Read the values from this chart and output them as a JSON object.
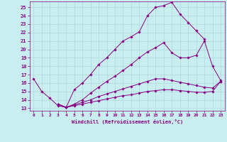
{
  "xlabel": "Windchill (Refroidissement éolien,°C)",
  "bg_color": "#c8eef0",
  "grid_color": "#b0d8da",
  "line_color": "#880088",
  "xlim": [
    -0.5,
    23.5
  ],
  "ylim": [
    12.7,
    25.7
  ],
  "xticks": [
    0,
    1,
    2,
    3,
    4,
    5,
    6,
    7,
    8,
    9,
    10,
    11,
    12,
    13,
    14,
    15,
    16,
    17,
    18,
    19,
    20,
    21,
    22,
    23
  ],
  "yticks": [
    13,
    14,
    15,
    16,
    17,
    18,
    19,
    20,
    21,
    22,
    23,
    24,
    25
  ],
  "line1_x": [
    0,
    1,
    2,
    3,
    4,
    5,
    6,
    7,
    8,
    9,
    10,
    11,
    12,
    13,
    14,
    15,
    16,
    17,
    18,
    19,
    20,
    21
  ],
  "line1_y": [
    16.5,
    15.0,
    14.2,
    13.3,
    13.1,
    15.2,
    16.0,
    17.0,
    18.2,
    19.0,
    20.0,
    21.0,
    21.5,
    22.1,
    24.0,
    25.0,
    25.2,
    25.6,
    24.2,
    23.2,
    22.2,
    21.2
  ],
  "line2_x": [
    3,
    4,
    5,
    6,
    7,
    8,
    9,
    10,
    11,
    12,
    13,
    14,
    15,
    16,
    17,
    18,
    19,
    20,
    21,
    22,
    23
  ],
  "line2_y": [
    13.5,
    13.1,
    13.5,
    14.0,
    14.8,
    15.5,
    16.2,
    16.8,
    17.5,
    18.2,
    19.0,
    19.7,
    20.2,
    20.8,
    19.6,
    19.0,
    19.0,
    19.3,
    21.0,
    18.0,
    16.3
  ],
  "line3_x": [
    3,
    4,
    5,
    6,
    7,
    8,
    9,
    10,
    11,
    12,
    13,
    14,
    15,
    16,
    17,
    18,
    19,
    20,
    21,
    22,
    23
  ],
  "line3_y": [
    13.5,
    13.1,
    13.4,
    13.7,
    14.0,
    14.4,
    14.7,
    15.0,
    15.3,
    15.6,
    15.9,
    16.2,
    16.5,
    16.5,
    16.3,
    16.1,
    15.9,
    15.7,
    15.5,
    15.4,
    16.2
  ],
  "line4_x": [
    3,
    4,
    5,
    6,
    7,
    8,
    9,
    10,
    11,
    12,
    13,
    14,
    15,
    16,
    17,
    18,
    19,
    20,
    21,
    22,
    23
  ],
  "line4_y": [
    13.5,
    13.1,
    13.3,
    13.5,
    13.7,
    13.9,
    14.1,
    14.3,
    14.5,
    14.6,
    14.8,
    15.0,
    15.1,
    15.2,
    15.2,
    15.1,
    15.0,
    14.9,
    14.9,
    15.0,
    16.2
  ]
}
